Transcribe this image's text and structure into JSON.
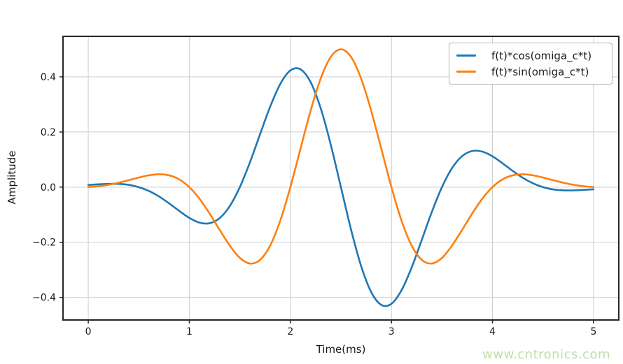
{
  "watermark": {
    "text": "www.cntronics.com",
    "color": "#b9e0ab"
  },
  "chart_data": {
    "type": "line",
    "title": "",
    "xlabel": "Time(ms)",
    "ylabel": "Amplitude",
    "xlim": [
      -0.25,
      5.25
    ],
    "ylim": [
      -0.482,
      0.547
    ],
    "x_ticks": [
      0,
      1,
      2,
      3,
      4,
      5
    ],
    "y_ticks": [
      -0.4,
      -0.2,
      0.0,
      0.2,
      0.4
    ],
    "grid": true,
    "grid_color": "#cdcdcd",
    "spine_color": "#262626",
    "tick_label_color": "#1a1a1a",
    "legend_position": "upper right",
    "x": [
      0,
      0.1,
      0.2,
      0.3,
      0.4,
      0.5,
      0.6,
      0.7,
      0.8,
      0.9,
      1,
      1.1,
      1.2,
      1.3,
      1.4,
      1.5,
      1.6,
      1.7,
      1.8,
      1.9,
      2,
      2.1,
      2.2,
      2.3,
      2.4,
      2.5,
      2.6,
      2.7,
      2.8,
      2.9,
      3,
      3.1,
      3.2,
      3.3,
      3.4,
      3.5,
      3.6,
      3.7,
      3.8,
      3.9,
      4,
      4.1,
      4.2,
      4.3,
      4.4,
      4.5,
      4.6,
      4.7,
      4.8,
      4.9,
      5
    ],
    "series": [
      {
        "name": "f(t)*cos(omiga_c*t)",
        "color": "#1f77b4",
        "values": [
          0.0078,
          0.0102,
          0.0119,
          0.0117,
          0.0082,
          0,
          -0.0139,
          -0.0339,
          -0.0589,
          -0.0863,
          -0.1116,
          -0.1287,
          -0.1311,
          -0.1125,
          -0.069,
          0,
          0.09,
          0.1918,
          0.2918,
          0.3741,
          0.4232,
          0.4274,
          0.381,
          0.2862,
          0.1535,
          0,
          -0.1535,
          -0.2862,
          -0.381,
          -0.4274,
          -0.4232,
          -0.3741,
          -0.2918,
          -0.1918,
          -0.09,
          0,
          0.069,
          0.1125,
          0.1311,
          0.1287,
          0.1116,
          0.0863,
          0.0589,
          0.0339,
          0.0139,
          0,
          -0.0082,
          -0.0117,
          -0.0119,
          -0.0102,
          -0.0078
        ]
      },
      {
        "name": "f(t)*sin(omiga_c*t)",
        "color": "#ff7f0e",
        "values": [
          0,
          0.0033,
          0.0086,
          0.0161,
          0.0251,
          0.0347,
          0.0429,
          0.0467,
          0.0428,
          0.028,
          0,
          -0.0418,
          -0.0953,
          -0.1549,
          -0.2122,
          -0.2567,
          -0.2771,
          -0.264,
          -0.212,
          -0.1215,
          0,
          0.1389,
          0.2768,
          0.3939,
          0.4724,
          0.5,
          0.4724,
          0.3939,
          0.2768,
          0.1389,
          0,
          -0.1215,
          -0.212,
          -0.264,
          -0.2771,
          -0.2567,
          -0.2122,
          -0.1549,
          -0.0953,
          -0.0418,
          0,
          0.028,
          0.0428,
          0.0467,
          0.0429,
          0.0347,
          0.0251,
          0.0161,
          0.0086,
          0.0033,
          0
        ]
      }
    ]
  }
}
